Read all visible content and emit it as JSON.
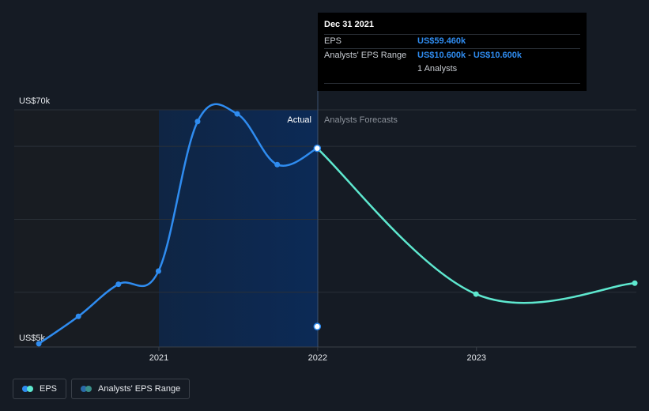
{
  "chart_data": {
    "type": "line",
    "y_axis": {
      "top_label": "US$70k",
      "bottom_label": "US$5k",
      "ylim": [
        5000,
        70000
      ],
      "gridlines": [
        70000,
        60000,
        40000,
        20000
      ]
    },
    "x_ticks": [
      "2021",
      "2022",
      "2023"
    ],
    "region_labels": {
      "actual": "Actual",
      "forecast": "Analysts Forecasts"
    },
    "series": [
      {
        "name": "EPS",
        "color": "#2f8cf0",
        "points": [
          [
            "2020-03-31",
            5900
          ],
          [
            "2020-06-30",
            13400
          ],
          [
            "2020-09-30",
            22200
          ],
          [
            "2020-12-31",
            25800
          ],
          [
            "2021-03-31",
            66800
          ],
          [
            "2021-06-30",
            68900
          ],
          [
            "2021-09-30",
            55000
          ],
          [
            "2021-12-31",
            59460
          ]
        ]
      },
      {
        "name": "EPS Forecast",
        "color": "#5ee8cf",
        "points": [
          [
            "2021-12-31",
            59460
          ],
          [
            "2022-12-31",
            19500
          ],
          [
            "2023-12-31",
            22500
          ]
        ]
      },
      {
        "name": "Analysts' EPS Range",
        "color": "#2f8cf0",
        "points": [
          [
            "2021-12-31",
            10600
          ]
        ]
      }
    ],
    "highlight_date": "2021-12-31"
  },
  "tooltip": {
    "date": "Dec 31 2021",
    "eps_label": "EPS",
    "eps_value": "US$59.460k",
    "range_label": "Analysts' EPS Range",
    "range_low": "US$10.600k",
    "range_separator": "-",
    "range_high": "US$10.600k",
    "analysts": "1 Analysts"
  },
  "legend": [
    {
      "label": "EPS",
      "colors": [
        "#2f8cf0",
        "#5ee8cf"
      ]
    },
    {
      "label": "Analysts' EPS Range",
      "colors": [
        "#2a6aa8",
        "#3a8f8a"
      ]
    }
  ]
}
